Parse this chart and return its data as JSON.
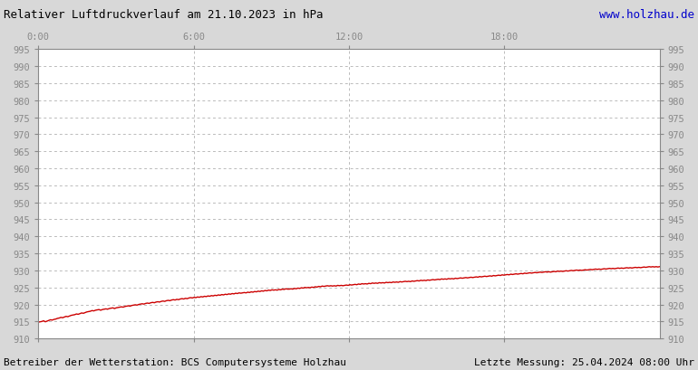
{
  "title": "Relativer Luftdruckverlauf am 21.10.2023 in hPa",
  "website": "www.holzhau.de",
  "footer_left": "Betreiber der Wetterstation: BCS Computersysteme Holzhau",
  "footer_right": "Letzte Messung: 25.04.2024 08:00 Uhr",
  "bg_color": "#d8d8d8",
  "plot_bg_color": "#ffffff",
  "line_color": "#cc0000",
  "grid_color": "#bbbbbb",
  "tick_label_color": "#888888",
  "title_color": "#000000",
  "website_color": "#0000cc",
  "footer_color": "#000000",
  "ylim": [
    910,
    995
  ],
  "ytick_step": 5,
  "xticks_labels": [
    "0:00",
    "6:00",
    "12:00",
    "18:00"
  ],
  "xticks_positions": [
    0,
    360,
    720,
    1080
  ],
  "x_max": 1440,
  "pressure_data": [
    914.8,
    914.9,
    915.0,
    915.2,
    914.9,
    915.1,
    915.3,
    915.5,
    915.4,
    915.6,
    915.7,
    915.9,
    916.0,
    916.2,
    916.1,
    916.3,
    916.5,
    916.4,
    916.6,
    916.8,
    916.9,
    917.0,
    917.2,
    917.1,
    917.3,
    917.5,
    917.4,
    917.6,
    917.8,
    917.9,
    918.0,
    918.2,
    918.1,
    918.3,
    918.4,
    918.5,
    918.3,
    918.5,
    918.6,
    918.7,
    918.6,
    918.8,
    918.9,
    919.0,
    918.8,
    919.0,
    919.1,
    919.2,
    919.3,
    919.2,
    919.4,
    919.5,
    919.6,
    919.5,
    919.7,
    919.8,
    919.9,
    919.8,
    920.0,
    920.1,
    920.2,
    920.1,
    920.3,
    920.4,
    920.3,
    920.5,
    920.6,
    920.5,
    920.7,
    920.8,
    920.7,
    920.9,
    921.0,
    920.9,
    921.1,
    921.2,
    921.1,
    921.3,
    921.4,
    921.3,
    921.5,
    921.4,
    921.6,
    921.7,
    921.6,
    921.8,
    921.7,
    921.9,
    922.0,
    921.9,
    922.1,
    922.0,
    922.2,
    922.1,
    922.3,
    922.2,
    922.4,
    922.3,
    922.5,
    922.4,
    922.6,
    922.5,
    922.7,
    922.6,
    922.8,
    922.7,
    922.9,
    922.8,
    923.0,
    922.9,
    923.1,
    923.0,
    923.2,
    923.1,
    923.3,
    923.2,
    923.4,
    923.3,
    923.4,
    923.5,
    923.4,
    923.6,
    923.5,
    923.7,
    923.6,
    923.8,
    923.7,
    923.9,
    923.8,
    924.0,
    923.9,
    924.1,
    924.0,
    924.2,
    924.1,
    924.3,
    924.2,
    924.3,
    924.2,
    924.4,
    924.3,
    924.5,
    924.4,
    924.6,
    924.5,
    924.5,
    924.6,
    924.5,
    924.7,
    924.6,
    924.8,
    924.7,
    924.9,
    924.8,
    925.0,
    924.9,
    925.0,
    924.9,
    925.1,
    925.0,
    925.2,
    925.1,
    925.3,
    925.2,
    925.4,
    925.3,
    925.4,
    925.5,
    925.4,
    925.5,
    925.4,
    925.5,
    925.4,
    925.6,
    925.5,
    925.6,
    925.5,
    925.6,
    925.7,
    925.6,
    925.8,
    925.7,
    925.8,
    925.9,
    925.8,
    926.0,
    925.9,
    926.1,
    926.0,
    926.1,
    926.0,
    926.2,
    926.1,
    926.3,
    926.2,
    926.3,
    926.2,
    926.4,
    926.3,
    926.4,
    926.3,
    926.5,
    926.4,
    926.5,
    926.4,
    926.6,
    926.5,
    926.6,
    926.5,
    926.7,
    926.6,
    926.7,
    926.8,
    926.7,
    926.8,
    926.7,
    926.9,
    926.8,
    926.9,
    927.0,
    926.9,
    927.1,
    927.0,
    927.1,
    927.0,
    927.2,
    927.1,
    927.2,
    927.3,
    927.2,
    927.3,
    927.4,
    927.3,
    927.5,
    927.4,
    927.5,
    927.4,
    927.6,
    927.5,
    927.6,
    927.5,
    927.7,
    927.6,
    927.7,
    927.8,
    927.7,
    927.8,
    927.9,
    927.8,
    927.9,
    928.0,
    927.9,
    928.0,
    928.1,
    928.0,
    928.2,
    928.1,
    928.2,
    928.3,
    928.2,
    928.3,
    928.4,
    928.3,
    928.5,
    928.4,
    928.5,
    928.6,
    928.5,
    928.7,
    928.6,
    928.7,
    928.8,
    928.7,
    928.9,
    928.8,
    928.9,
    929.0,
    928.9,
    929.0,
    929.1,
    929.0,
    929.2,
    929.1,
    929.2,
    929.3,
    929.2,
    929.3,
    929.4,
    929.3,
    929.4,
    929.5,
    929.4,
    929.5,
    929.6,
    929.5,
    929.6,
    929.5,
    929.6,
    929.7,
    929.6,
    929.8,
    929.7,
    929.8,
    929.7,
    929.8,
    929.9,
    929.8,
    929.9,
    930.0,
    929.9,
    930.0,
    930.1,
    930.0,
    930.1,
    930.0,
    930.1,
    930.2,
    930.1,
    930.2,
    930.3,
    930.2,
    930.3,
    930.4,
    930.3,
    930.4,
    930.3,
    930.4,
    930.5,
    930.4,
    930.5,
    930.6,
    930.5,
    930.6,
    930.5,
    930.6,
    930.7,
    930.6,
    930.7,
    930.6,
    930.7,
    930.8,
    930.7,
    930.8,
    930.7,
    930.8,
    930.9,
    930.8,
    930.9,
    930.8,
    930.9,
    931.0,
    930.9,
    931.0,
    931.1,
    931.0,
    931.1,
    931.0,
    931.1,
    931.0,
    931.1
  ]
}
